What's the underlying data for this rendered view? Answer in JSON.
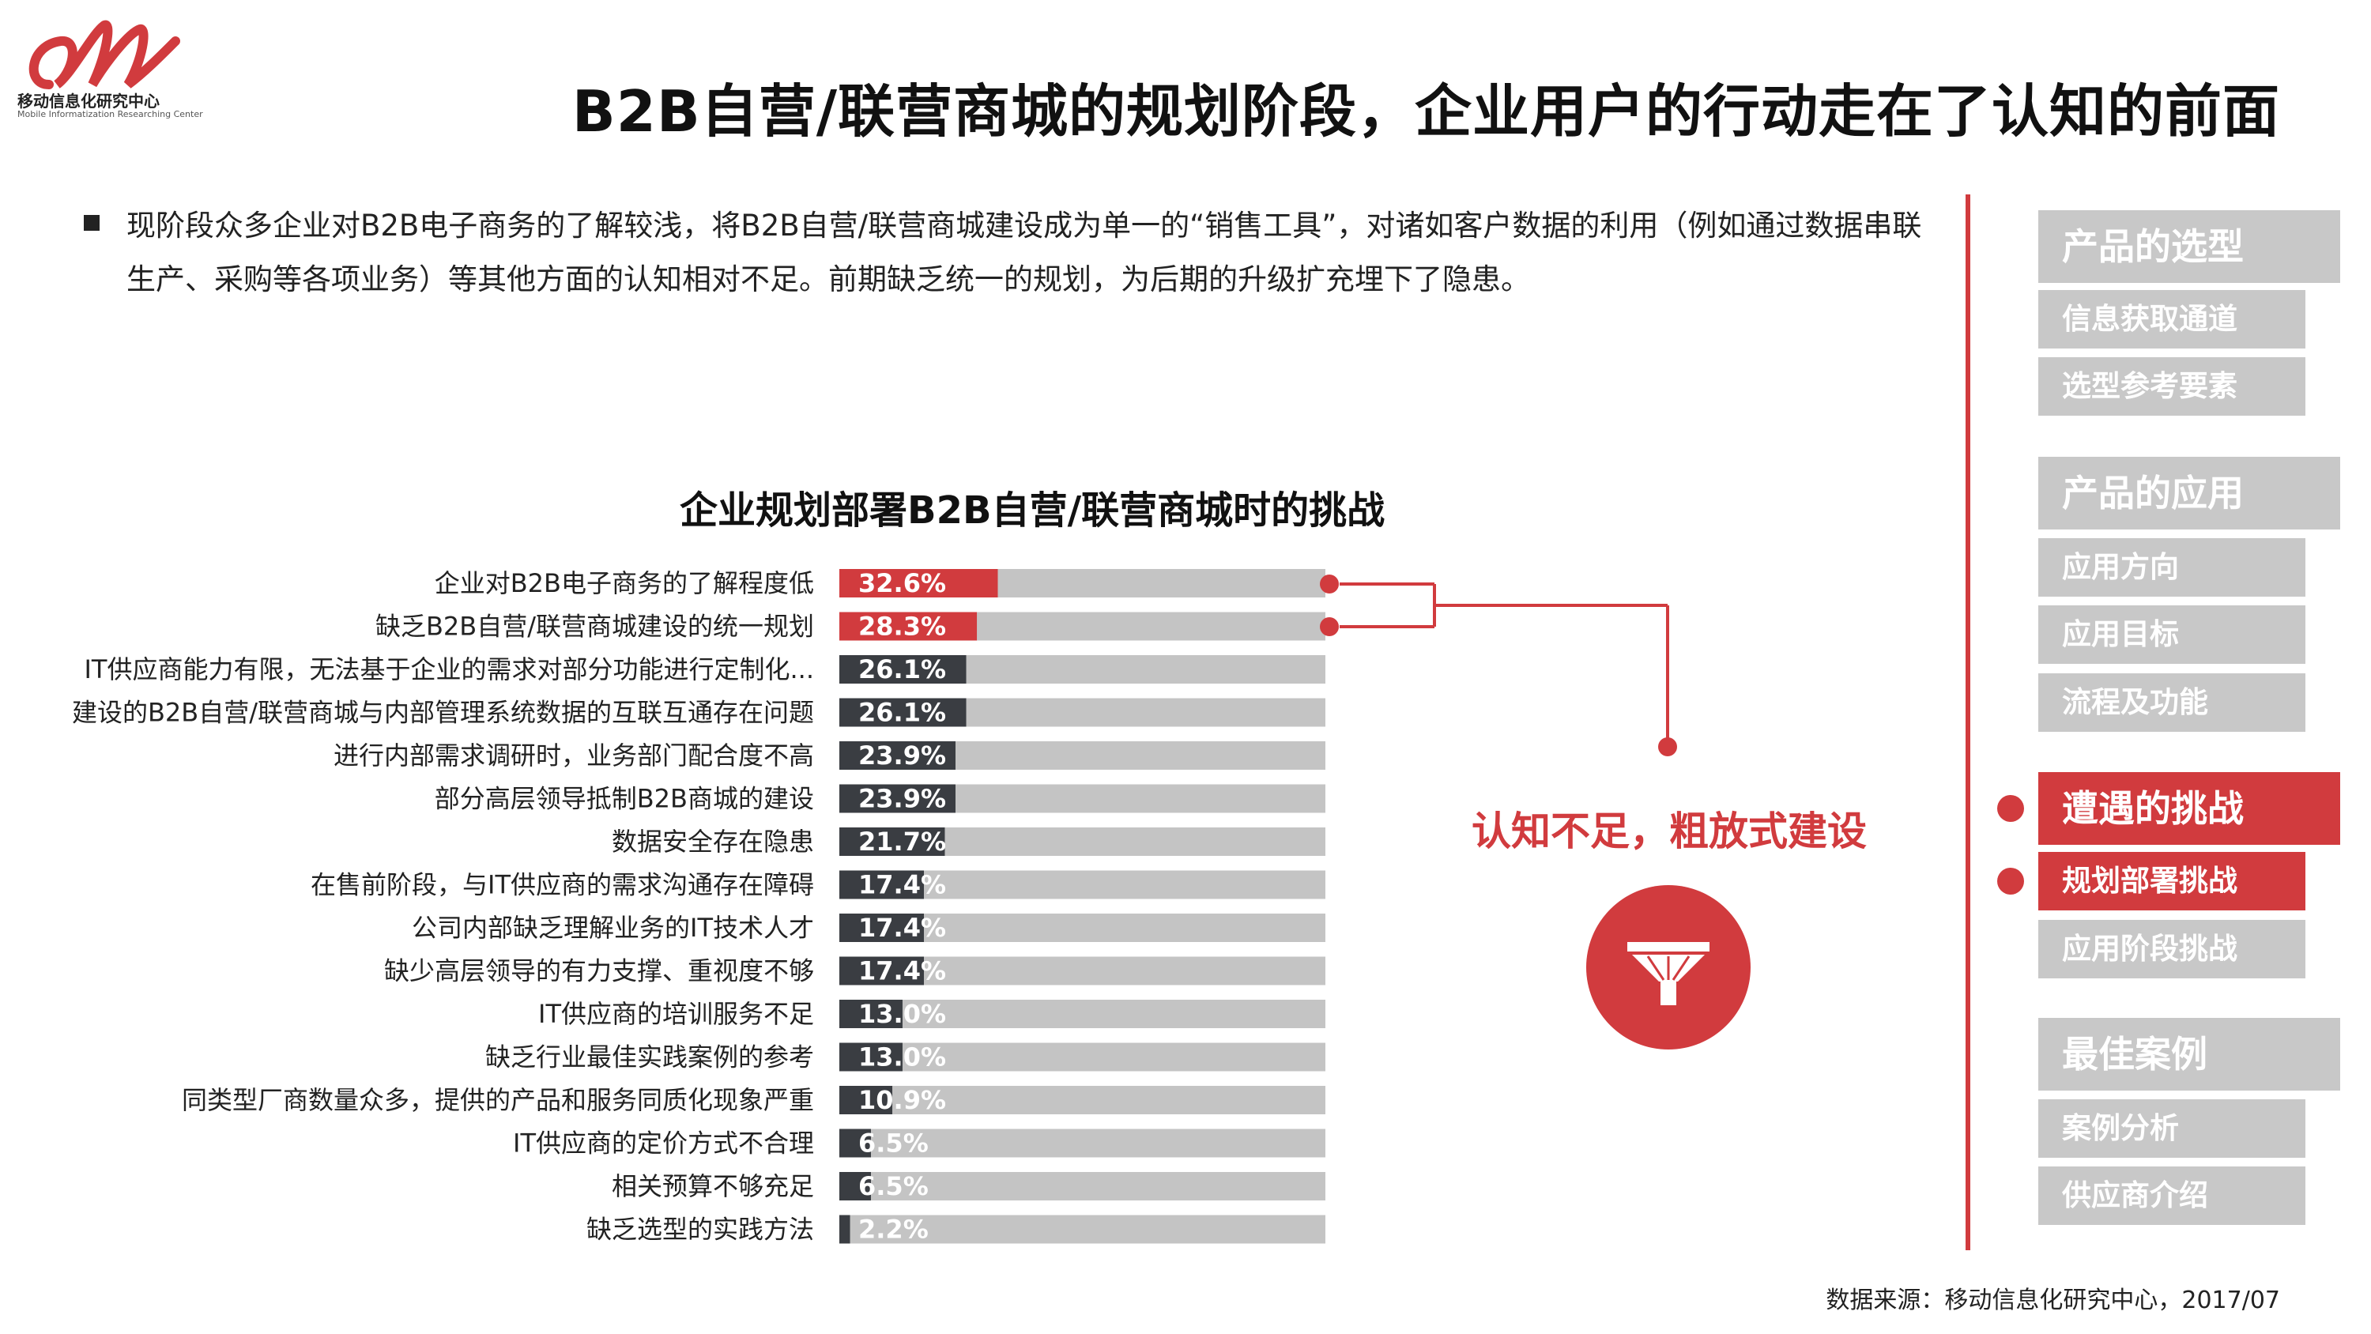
{
  "brand": {
    "name": "移动信息化研究中心",
    "sub": "Mobile Informatization Researching Center",
    "accent": "#d13b3e"
  },
  "header": {
    "title": "B2B自营/联营商城的规划阶段，企业用户的行动走在了认知的前面"
  },
  "intro": {
    "text": "现阶段众多企业对B2B电子商务的了解较浅，将B2B自营/联营商城建设成为单一的“销售工具”，对诸如客户数据的利用（例如通过数据串联生产、采购等各项业务）等其他方面的认知相对不足。前期缺乏统一的规划，为后期的升级扩充埋下了隐患。"
  },
  "chart_data": {
    "type": "bar",
    "orientation": "horizontal",
    "title": "企业规划部署B2B自营/联营商城时的挑战",
    "categories": [
      "企业对B2B电子商务的了解程度低",
      "缺乏B2B自营/联营商城建设的统一规划",
      "IT供应商能力有限，无法基于企业的需求对部分功能进行定制化...",
      "建设的B2B自营/联营商城与内部管理系统数据的互联互通存在问题",
      "进行内部需求调研时，业务部门配合度不高",
      "部分高层领导抵制B2B商城的建设",
      "数据安全存在隐患",
      "在售前阶段，与IT供应商的需求沟通存在障碍",
      "公司内部缺乏理解业务的IT技术人才",
      "缺少高层领导的有力支撑、重视度不够",
      "IT供应商的培训服务不足",
      "缺乏行业最佳实践案例的参考",
      "同类型厂商数量众多，提供的产品和服务同质化现象严重",
      "IT供应商的定价方式不合理",
      "相关预算不够充足",
      "缺乏选型的实践方法"
    ],
    "values": [
      32.6,
      28.3,
      26.1,
      26.1,
      23.9,
      23.9,
      21.7,
      17.4,
      17.4,
      17.4,
      13.0,
      13.0,
      10.9,
      6.5,
      6.5,
      2.2
    ],
    "value_labels": [
      "32.6%",
      "28.3%",
      "26.1%",
      "26.1%",
      "23.9%",
      "23.9%",
      "21.7%",
      "17.4%",
      "17.4%",
      "17.4%",
      "13.0%",
      "13.0%",
      "10.9%",
      "6.5%",
      "6.5%",
      "2.2%"
    ],
    "highlighted": [
      0,
      1
    ],
    "xlim": [
      0,
      100
    ],
    "grid": false,
    "colors": {
      "highlight": "#d13b3e",
      "normal": "#3a3d42",
      "track": "#c4c4c4"
    }
  },
  "callout": {
    "text": "认知不足，粗放式建设"
  },
  "funnel_icon": "funnel-icon",
  "nav": {
    "items": [
      {
        "label": "产品的选型",
        "kind": "section",
        "active": false
      },
      {
        "label": "信息获取通道",
        "kind": "sub",
        "active": false
      },
      {
        "label": "选型参考要素",
        "kind": "sub",
        "active": false
      },
      {
        "label": "产品的应用",
        "kind": "section",
        "active": false
      },
      {
        "label": "应用方向",
        "kind": "sub",
        "active": false
      },
      {
        "label": "应用目标",
        "kind": "sub",
        "active": false
      },
      {
        "label": "流程及功能",
        "kind": "sub",
        "active": false
      },
      {
        "label": "遭遇的挑战",
        "kind": "section",
        "active": true
      },
      {
        "label": "规划部署挑战",
        "kind": "sub",
        "active": true
      },
      {
        "label": "应用阶段挑战",
        "kind": "sub",
        "active": false
      },
      {
        "label": "最佳案例",
        "kind": "section",
        "active": false
      },
      {
        "label": "案例分析",
        "kind": "sub",
        "active": false
      },
      {
        "label": "供应商介绍",
        "kind": "sub",
        "active": false
      }
    ]
  },
  "footer": {
    "source": "数据来源：移动信息化研究中心，2017/07"
  }
}
